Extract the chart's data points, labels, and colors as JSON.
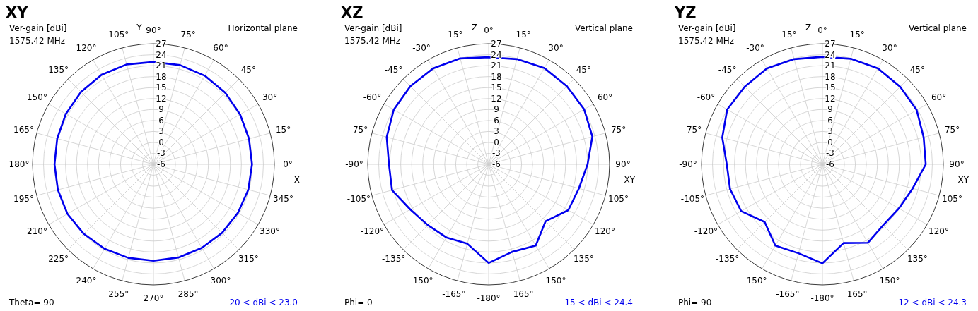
{
  "chart_data": [
    {
      "type": "radar",
      "title": "XY",
      "xlabel": "X",
      "ylabel": "Y",
      "annotations": [
        "Ver-gain [dBi]",
        "1575.42 MHz",
        "Horizontal plane",
        "Theta= 90",
        "20 < dBi < 23.0"
      ],
      "categories": [
        "90°",
        "75°",
        "60°",
        "45°",
        "30°",
        "15°",
        "0°",
        "345°",
        "330°",
        "315°",
        "300°",
        "285°",
        "270°",
        "255°",
        "240°",
        "225°",
        "210°",
        "195°",
        "180°",
        "165°",
        "150°",
        "135°",
        "120°",
        "105°"
      ],
      "series": [
        {
          "color": "#0000ee",
          "values": [
            22.0,
            22.1,
            22.0,
            21.7,
            21.3,
            21.0,
            20.9,
            20.8,
            20.6,
            20.5,
            20.4,
            20.4,
            20.4,
            20.5,
            20.7,
            20.9,
            21.1,
            21.0,
            21.0,
            21.2,
            21.6,
            22.0,
            22.3,
            22.3
          ]
        }
      ],
      "ylim": [
        -6,
        27
      ],
      "yticks": [
        -6,
        -3,
        0,
        3,
        6,
        9,
        12,
        15,
        18,
        21,
        24,
        27
      ],
      "grid": true,
      "marker": "none"
    },
    {
      "type": "radar",
      "title": "XZ",
      "xlabel": "XY",
      "ylabel": "Z",
      "annotations": [
        "Ver-gain [dBi]",
        "1575.42 MHz",
        "Vertical plane",
        "Phi= 0",
        "15 < dBi < 24.4"
      ],
      "categories": [
        "0°",
        "15°",
        "30°",
        "45°",
        "60°",
        "75°",
        "90°",
        "105°",
        "120°",
        "135°",
        "150°",
        "165°",
        "-180°",
        "-165°",
        "-150°",
        "-135°",
        "-120°",
        "-105°",
        "-90°",
        "-75°",
        "-60°",
        "-45°",
        "-30°",
        "-15°"
      ],
      "series": [
        {
          "color": "#0000ee",
          "values": [
            23.3,
            23.8,
            24.4,
            24.2,
            24.1,
            23.3,
            21.0,
            19.5,
            19.1,
            16.0,
            19.7,
            18.8,
            21.0,
            16.5,
            17.1,
            17.5,
            18.7,
            21.3,
            21.2,
            22.8,
            23.9,
            24.2,
            24.3,
            24.0
          ]
        }
      ],
      "ylim": [
        -6,
        27
      ],
      "yticks": [
        -6,
        -3,
        0,
        3,
        6,
        9,
        12,
        15,
        18,
        21,
        24,
        27
      ],
      "grid": true,
      "marker": "none"
    },
    {
      "type": "radar",
      "title": "YZ",
      "xlabel": "XY",
      "ylabel": "Z",
      "annotations": [
        "Ver-gain [dBi]",
        "1575.42 MHz",
        "Vertical plane",
        "Phi= 90",
        "12 < dBi < 24.3"
      ],
      "categories": [
        "0°",
        "15°",
        "30°",
        "45°",
        "60°",
        "75°",
        "90°",
        "105°",
        "120°",
        "135°",
        "150°",
        "165°",
        "-180°",
        "-165°",
        "-150°",
        "-135°",
        "-120°",
        "-105°",
        "-90°",
        "-75°",
        "-60°",
        "-45°",
        "-30°",
        "-15°"
      ],
      "series": [
        {
          "color": "#0000ee",
          "values": [
            23.4,
            23.9,
            24.3,
            24.0,
            23.7,
            22.6,
            22.2,
            19.5,
            18.1,
            17.5,
            18.8,
            16.3,
            21.1,
            19.2,
            19.7,
            16.3,
            19.6,
            20.1,
            20.1,
            22.3,
            24.0,
            24.0,
            24.3,
            23.8
          ]
        }
      ],
      "ylim": [
        -6,
        27
      ],
      "yticks": [
        -6,
        -3,
        0,
        3,
        6,
        9,
        12,
        15,
        18,
        21,
        24,
        27
      ],
      "grid": true,
      "marker": "none"
    }
  ]
}
